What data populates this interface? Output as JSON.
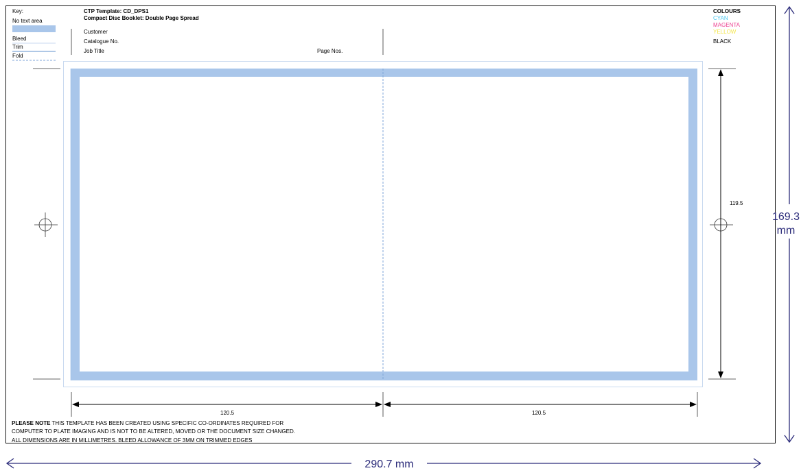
{
  "key": {
    "heading": "Key:",
    "no_text_area": "No text area",
    "bleed": "Bleed",
    "trim": "Trim",
    "fold": "Fold"
  },
  "template": {
    "title": "CTP Template: CD_DPS1",
    "subtitle": "Compact Disc Booklet: Double Page Spread",
    "customer_label": "Customer",
    "catalogue_label": "Catalogue No.",
    "job_title_label": "Job Title",
    "page_nos_label": "Page Nos."
  },
  "colours": {
    "heading": "COLOURS",
    "cyan": "CYAN",
    "magenta": "MAGENTA",
    "yellow": "YELLOW",
    "black": "BLACK"
  },
  "dimensions": {
    "height_value": "119.5",
    "left_width_value": "120.5",
    "right_width_value": "120.5",
    "overall_height_line1": "169.3",
    "overall_height_line2": "mm",
    "overall_width": "290.7 mm"
  },
  "notice": {
    "lead": "PLEASE NOTE",
    "line1": " THIS TEMPLATE HAS BEEN CREATED USING SPECIFIC CO-ORDINATES REQUIRED FOR",
    "line2": "COMPUTER TO PLATE IMAGING AND IS NOT TO BE ALTERED, MOVED OR THE DOCUMENT SIZE CHANGED.",
    "line3": "ALL DIMENSIONS ARE IN MILLIMETRES. BLEED ALLOWANCE OF 3MM ON TRIMMED EDGES"
  },
  "colors": {
    "no_text_area_fill": "#a9c6ea",
    "cyan": "#49c6ee",
    "magenta": "#ec3e8f",
    "yellow": "#f4e64a",
    "outer_arrow": "#2b2b7a",
    "ink": "#000000"
  }
}
